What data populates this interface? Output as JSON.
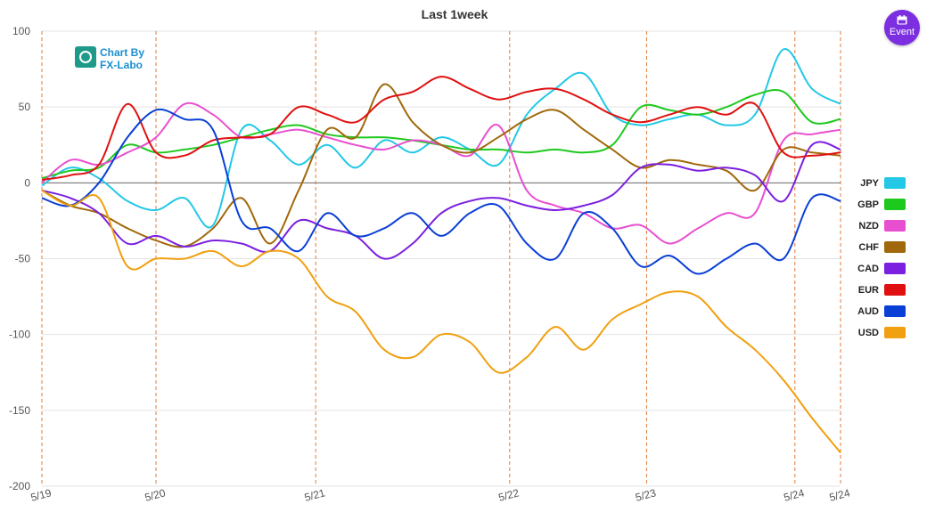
{
  "event_button": {
    "label": "Event",
    "icon": "calendar-icon",
    "color": "#7b2fe0"
  },
  "logo": {
    "line1": "Chart By",
    "line2": "FX-Labo"
  },
  "chart_data": {
    "type": "line",
    "title": "Last 1week",
    "xlabel": "",
    "ylabel": "",
    "ylim": [
      -200,
      100
    ],
    "yticks": [
      100,
      50,
      0,
      -50,
      -100,
      -150,
      -200
    ],
    "xlim": [
      0,
      7
    ],
    "x_ticks": [
      {
        "label": "5/19",
        "x": 0
      },
      {
        "label": "5/20",
        "x": 1
      },
      {
        "label": "5/21",
        "x": 2.4
      },
      {
        "label": "5/22",
        "x": 4.1
      },
      {
        "label": "5/23",
        "x": 5.3
      },
      {
        "label": "5/24",
        "x": 6.6
      },
      {
        "label": "5/24",
        "x": 7
      }
    ],
    "grid": true,
    "legend_position": "right",
    "series": [
      {
        "name": "JPY",
        "color": "#22c8e6",
        "x": [
          0,
          0.25,
          0.5,
          0.75,
          1,
          1.25,
          1.5,
          1.75,
          2,
          2.25,
          2.5,
          2.75,
          3,
          3.25,
          3.5,
          3.75,
          4,
          4.25,
          4.5,
          4.75,
          5,
          5.25,
          5.5,
          5.75,
          6,
          6.25,
          6.5,
          6.75,
          7
        ],
        "y": [
          -2,
          10,
          3,
          -12,
          -18,
          -10,
          -28,
          35,
          28,
          12,
          25,
          10,
          28,
          20,
          30,
          22,
          12,
          45,
          62,
          72,
          45,
          38,
          42,
          45,
          38,
          45,
          88,
          62,
          52
        ]
      },
      {
        "name": "GBP",
        "color": "#1ec91e",
        "x": [
          0,
          0.25,
          0.5,
          0.75,
          1,
          1.25,
          1.5,
          1.75,
          2,
          2.25,
          2.5,
          2.75,
          3,
          3.25,
          3.5,
          3.75,
          4,
          4.25,
          4.5,
          4.75,
          5,
          5.25,
          5.5,
          5.75,
          6,
          6.25,
          6.5,
          6.75,
          7
        ],
        "y": [
          3,
          8,
          10,
          25,
          20,
          22,
          25,
          30,
          35,
          38,
          32,
          30,
          30,
          28,
          25,
          22,
          22,
          20,
          22,
          20,
          25,
          50,
          48,
          45,
          50,
          58,
          60,
          40,
          42
        ]
      },
      {
        "name": "NZD",
        "color": "#e84fd0",
        "x": [
          0,
          0.25,
          0.5,
          0.75,
          1,
          1.25,
          1.5,
          1.75,
          2,
          2.25,
          2.5,
          2.75,
          3,
          3.25,
          3.5,
          3.75,
          4,
          4.25,
          4.5,
          4.75,
          5,
          5.25,
          5.5,
          5.75,
          6,
          6.25,
          6.5,
          6.75,
          7
        ],
        "y": [
          0,
          15,
          12,
          20,
          30,
          52,
          45,
          30,
          32,
          35,
          30,
          25,
          22,
          28,
          25,
          18,
          38,
          -5,
          -15,
          -20,
          -30,
          -28,
          -40,
          -30,
          -20,
          -20,
          28,
          32,
          35
        ]
      },
      {
        "name": "CHF",
        "color": "#a0680a",
        "x": [
          0,
          0.25,
          0.5,
          0.75,
          1,
          1.25,
          1.5,
          1.75,
          2,
          2.25,
          2.5,
          2.75,
          3,
          3.25,
          3.5,
          3.75,
          4,
          4.25,
          4.5,
          4.75,
          5,
          5.25,
          5.5,
          5.75,
          6,
          6.25,
          6.5,
          6.75,
          7
        ],
        "y": [
          -5,
          -15,
          -20,
          -30,
          -38,
          -42,
          -30,
          -10,
          -40,
          -5,
          35,
          30,
          65,
          40,
          25,
          20,
          30,
          42,
          48,
          35,
          22,
          10,
          15,
          12,
          8,
          -5,
          22,
          20,
          18
        ]
      },
      {
        "name": "CAD",
        "color": "#7b1fe0",
        "x": [
          0,
          0.25,
          0.5,
          0.75,
          1,
          1.25,
          1.5,
          1.75,
          2,
          2.25,
          2.5,
          2.75,
          3,
          3.25,
          3.5,
          3.75,
          4,
          4.25,
          4.5,
          4.75,
          5,
          5.25,
          5.5,
          5.75,
          6,
          6.25,
          6.5,
          6.75,
          7
        ],
        "y": [
          -5,
          -10,
          -20,
          -40,
          -35,
          -42,
          -38,
          -40,
          -45,
          -25,
          -30,
          -35,
          -50,
          -40,
          -20,
          -12,
          -10,
          -15,
          -18,
          -15,
          -8,
          10,
          12,
          8,
          10,
          5,
          -12,
          25,
          22
        ]
      },
      {
        "name": "EUR",
        "color": "#e01010",
        "x": [
          0,
          0.25,
          0.5,
          0.75,
          1,
          1.25,
          1.5,
          1.75,
          2,
          2.25,
          2.5,
          2.75,
          3,
          3.25,
          3.5,
          3.75,
          4,
          4.25,
          4.5,
          4.75,
          5,
          5.25,
          5.5,
          5.75,
          6,
          6.25,
          6.5,
          6.75,
          7
        ],
        "y": [
          2,
          5,
          12,
          52,
          20,
          18,
          28,
          30,
          32,
          50,
          45,
          40,
          55,
          60,
          70,
          62,
          55,
          60,
          62,
          55,
          45,
          40,
          45,
          50,
          45,
          52,
          20,
          18,
          20
        ]
      },
      {
        "name": "AUD",
        "color": "#0a3fd6",
        "x": [
          0,
          0.25,
          0.5,
          0.75,
          1,
          1.25,
          1.5,
          1.75,
          2,
          2.25,
          2.5,
          2.75,
          3,
          3.25,
          3.5,
          3.75,
          4,
          4.25,
          4.5,
          4.75,
          5,
          5.25,
          5.5,
          5.75,
          6,
          6.25,
          6.5,
          6.75,
          7
        ],
        "y": [
          -10,
          -15,
          0,
          30,
          48,
          42,
          35,
          -25,
          -30,
          -45,
          -20,
          -35,
          -30,
          -20,
          -35,
          -20,
          -15,
          -40,
          -50,
          -20,
          -30,
          -55,
          -48,
          -60,
          -50,
          -40,
          -50,
          -10,
          -12
        ]
      },
      {
        "name": "USD",
        "color": "#f0a010",
        "x": [
          0,
          0.25,
          0.5,
          0.75,
          1,
          1.25,
          1.5,
          1.75,
          2,
          2.25,
          2.5,
          2.75,
          3,
          3.25,
          3.5,
          3.75,
          4,
          4.25,
          4.5,
          4.75,
          5,
          5.25,
          5.5,
          5.75,
          6,
          6.25,
          6.5,
          6.75,
          7
        ],
        "y": [
          -5,
          -15,
          -10,
          -55,
          -50,
          -50,
          -45,
          -55,
          -45,
          -50,
          -75,
          -85,
          -110,
          -115,
          -100,
          -105,
          -125,
          -115,
          -95,
          -110,
          -90,
          -80,
          -72,
          -75,
          -95,
          -110,
          -130,
          -155,
          -178
        ]
      }
    ]
  }
}
